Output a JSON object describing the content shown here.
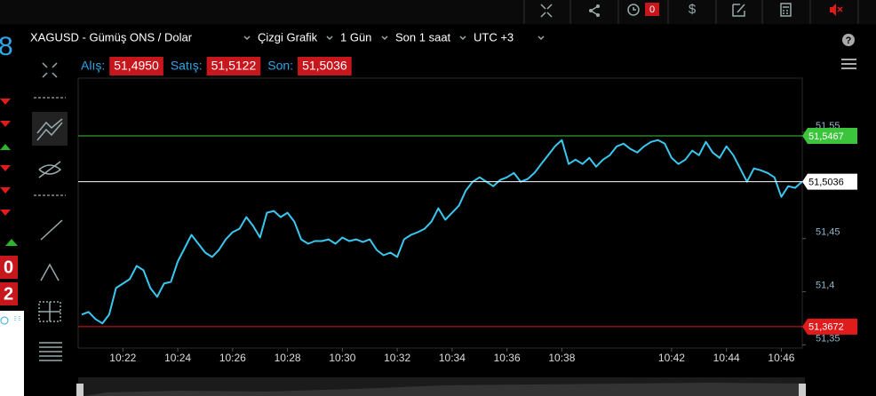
{
  "toolbar": {
    "badge": "0",
    "currency": "$"
  },
  "help": "?",
  "left_strip": {
    "digit": "8",
    "box1": "0",
    "box2": "2"
  },
  "header": {
    "symbol": "XAGUSD - Gümüş ONS / Dolar",
    "chart_type": "Çizgi Grafik",
    "period": "1 Gün",
    "range": "Son 1 saat",
    "timezone": "UTC +3"
  },
  "quotes": [
    {
      "label": "Alış:",
      "value": "51,4950"
    },
    {
      "label": "Satış:",
      "value": "51,5122"
    },
    {
      "label": "Son:",
      "value": "51,5036"
    }
  ],
  "chart_data": {
    "type": "line",
    "color": "#38c8f0",
    "categories": [
      null,
      null,
      null,
      null,
      null,
      null,
      "10:22",
      null,
      null,
      null,
      null,
      null,
      null,
      null,
      "10:24",
      null,
      null,
      null,
      null,
      null,
      null,
      null,
      "10:26",
      null,
      null,
      null,
      null,
      null,
      null,
      null,
      "10:28",
      null,
      null,
      null,
      null,
      null,
      null,
      null,
      "10:30",
      null,
      null,
      null,
      null,
      null,
      null,
      null,
      "10:32",
      null,
      null,
      null,
      null,
      null,
      null,
      null,
      "10:34",
      null,
      null,
      null,
      null,
      null,
      null,
      null,
      "10:36",
      null,
      null,
      null,
      null,
      null,
      null,
      null,
      "10:38",
      null,
      null,
      null,
      null,
      null,
      null,
      null,
      null,
      null,
      null,
      null,
      null,
      null,
      null,
      null,
      "10:42",
      null,
      null,
      null,
      null,
      null,
      null,
      null,
      "10:44",
      null,
      null,
      null,
      null,
      null,
      null,
      null,
      "10:46",
      null,
      null,
      null
    ],
    "values": [
      51.3785,
      51.381,
      51.3743,
      51.3702,
      51.3785,
      51.4035,
      51.4077,
      51.4118,
      51.4243,
      51.4202,
      51.4035,
      51.3952,
      51.4077,
      51.4093,
      51.4285,
      51.441,
      51.4535,
      51.4452,
      51.4368,
      51.4327,
      51.4393,
      51.4493,
      51.456,
      51.4593,
      51.4702,
      51.4618,
      51.451,
      51.4743,
      51.476,
      51.4702,
      51.4743,
      51.466,
      51.4493,
      51.4452,
      51.4477,
      51.4477,
      51.4493,
      51.4452,
      51.451,
      51.4477,
      51.4493,
      51.4468,
      51.4493,
      51.4393,
      51.4343,
      51.4368,
      51.4327,
      51.4493,
      51.4535,
      51.456,
      51.4593,
      51.466,
      51.4785,
      51.4677,
      51.4743,
      51.481,
      51.4952,
      51.5035,
      51.5077,
      51.5035,
      51.4993,
      51.5052,
      51.5077,
      51.5118,
      51.5035,
      51.506,
      51.5118,
      51.5202,
      51.5285,
      51.5368,
      51.5427,
      51.5202,
      51.5243,
      51.5202,
      51.526,
      51.5177,
      51.5243,
      51.5285,
      51.5368,
      51.5393,
      51.5343,
      51.531,
      51.5368,
      51.541,
      51.5427,
      51.5393,
      51.526,
      51.5202,
      51.5243,
      51.5327,
      51.5285,
      51.541,
      51.531,
      51.526,
      51.5368,
      51.5285,
      51.516,
      51.5035,
      51.516,
      51.5143,
      51.5118,
      51.5077,
      51.4893,
      51.4993,
      51.4977,
      51.5035
    ],
    "ylim": [
      51.347,
      51.601
    ],
    "yticks": [
      {
        "value": 51.35,
        "label": "51,35"
      },
      {
        "value": 51.4,
        "label": "51,4"
      },
      {
        "value": 51.45,
        "label": "51,45"
      },
      {
        "value": 51.55,
        "label": "51,55"
      }
    ],
    "price_lines": [
      {
        "value": 51.5467,
        "label": "51,5467",
        "color": "#3cc43c"
      },
      {
        "value": 51.5036,
        "label": "51,5036",
        "color": "#ffffff"
      },
      {
        "value": 51.3672,
        "label": "51,3672",
        "color": "#e01b1b"
      }
    ]
  }
}
